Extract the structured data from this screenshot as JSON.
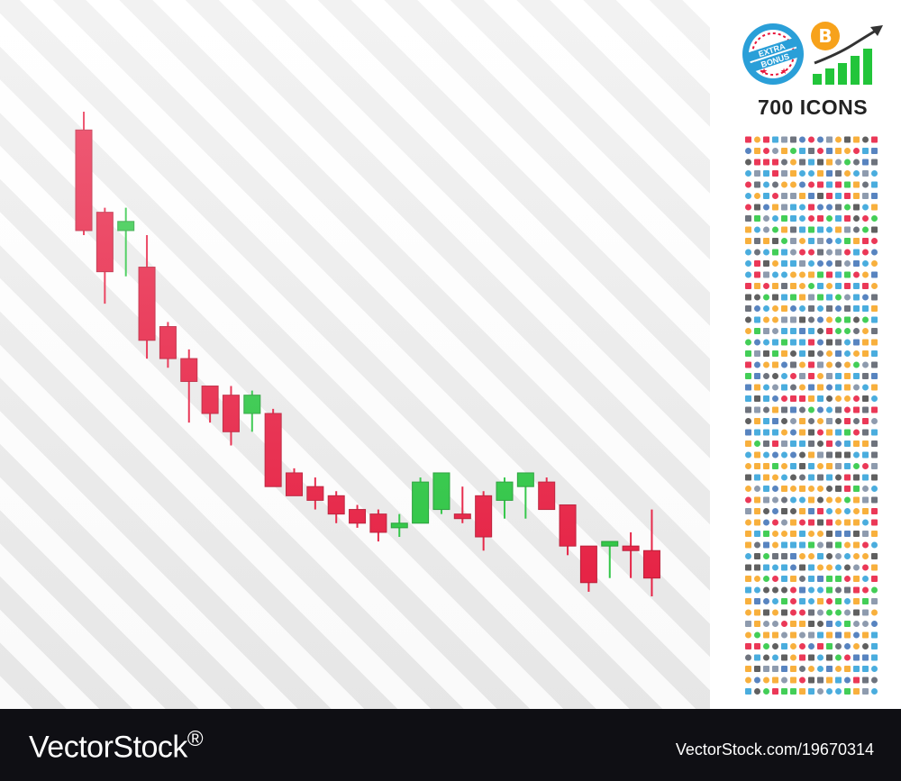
{
  "chart_data": {
    "type": "candlestick",
    "colors": {
      "up": "#22c53a",
      "down": "#e8153a"
    },
    "candles": [
      {
        "o": 96,
        "h": 100,
        "l": 73,
        "c": 74
      },
      {
        "o": 78,
        "h": 79,
        "l": 58,
        "c": 65
      },
      {
        "o": 74,
        "h": 79,
        "l": 64,
        "c": 76
      },
      {
        "o": 66,
        "h": 73,
        "l": 46,
        "c": 50
      },
      {
        "o": 53,
        "h": 54,
        "l": 44,
        "c": 46
      },
      {
        "o": 46,
        "h": 48,
        "l": 32,
        "c": 41
      },
      {
        "o": 40,
        "h": 40,
        "l": 32,
        "c": 34
      },
      {
        "o": 38,
        "h": 40,
        "l": 27,
        "c": 30
      },
      {
        "o": 34,
        "h": 39,
        "l": 30,
        "c": 38
      },
      {
        "o": 34,
        "h": 35,
        "l": 18,
        "c": 18
      },
      {
        "o": 21,
        "h": 22,
        "l": 16,
        "c": 16
      },
      {
        "o": 18,
        "h": 20,
        "l": 13,
        "c": 15
      },
      {
        "o": 16,
        "h": 17,
        "l": 10,
        "c": 12
      },
      {
        "o": 13,
        "h": 14,
        "l": 9,
        "c": 10
      },
      {
        "o": 12,
        "h": 13,
        "l": 6,
        "c": 8
      },
      {
        "o": 9,
        "h": 12,
        "l": 7,
        "c": 10
      },
      {
        "o": 10,
        "h": 20,
        "l": 10,
        "c": 19
      },
      {
        "o": 13,
        "h": 21,
        "l": 12,
        "c": 21
      },
      {
        "o": 12,
        "h": 18,
        "l": 10,
        "c": 11
      },
      {
        "o": 16,
        "h": 17,
        "l": 4,
        "c": 7
      },
      {
        "o": 15,
        "h": 20,
        "l": 11,
        "c": 19
      },
      {
        "o": 18,
        "h": 21,
        "l": 11,
        "c": 21
      },
      {
        "o": 19,
        "h": 20,
        "l": 13,
        "c": 13
      },
      {
        "o": 14,
        "h": 14,
        "l": 3,
        "c": 5
      },
      {
        "o": 5,
        "h": 5,
        "l": -5,
        "c": -3
      },
      {
        "o": 5,
        "h": 6,
        "l": -2,
        "c": 6
      },
      {
        "o": 5,
        "h": 8,
        "l": -2,
        "c": 4
      },
      {
        "o": 4,
        "h": 13,
        "l": -6,
        "c": -2
      }
    ]
  },
  "sidebar": {
    "badge_line1": "EXTRA",
    "badge_line2": "BONUS",
    "coin_symbol": "B",
    "icons_count": "700 ICONS"
  },
  "footer": {
    "logo": "VectorStock",
    "logo_mark": "®",
    "image_id": "VectorStock.com/19670314"
  }
}
